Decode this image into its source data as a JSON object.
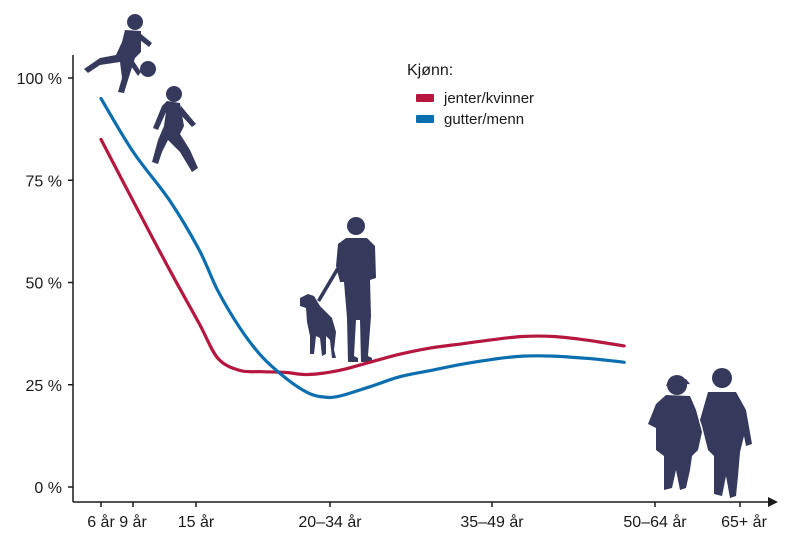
{
  "chart_data": {
    "type": "line",
    "legend_title": "Kjønn:",
    "legend_position": "top-center",
    "x": [
      "6 år",
      "9 år",
      "15 år",
      "20–34 år",
      "35–49 år",
      "50–64 år",
      "65+ år"
    ],
    "series": [
      {
        "name": "jenter/kvinner",
        "color": "#b5173f",
        "points": [
          [
            0,
            85
          ],
          [
            0.7,
            70
          ],
          [
            1.4,
            53
          ],
          [
            2,
            40
          ],
          [
            2.6,
            31.5
          ],
          [
            3.3,
            28.5
          ],
          [
            4,
            28.2
          ],
          [
            4.8,
            28
          ],
          [
            5.5,
            27.5
          ],
          [
            6.5,
            28.5
          ],
          [
            7.5,
            30.5
          ],
          [
            8.5,
            32.5
          ],
          [
            9.5,
            34
          ],
          [
            10.5,
            35
          ],
          [
            11.5,
            36
          ],
          [
            12.5,
            36.8
          ],
          [
            13.5,
            36.8
          ],
          [
            14.5,
            36
          ],
          [
            15.2,
            35.2
          ],
          [
            15.8,
            34.5
          ]
        ]
      },
      {
        "name": "gutter/menn",
        "color": "#0a6eaf",
        "points": [
          [
            0,
            95
          ],
          [
            0.7,
            82
          ],
          [
            1.4,
            70
          ],
          [
            2,
            58
          ],
          [
            2.6,
            48
          ],
          [
            3.3,
            39
          ],
          [
            4,
            32
          ],
          [
            4.8,
            26.5
          ],
          [
            5.5,
            23
          ],
          [
            6,
            22
          ],
          [
            6.5,
            22.2
          ],
          [
            7.5,
            24.5
          ],
          [
            8.5,
            27
          ],
          [
            9.5,
            28.5
          ],
          [
            10.5,
            30
          ],
          [
            11.5,
            31.2
          ],
          [
            12.5,
            32
          ],
          [
            13.5,
            32
          ],
          [
            14.5,
            31.5
          ],
          [
            15.2,
            31
          ],
          [
            15.8,
            30.5
          ]
        ]
      }
    ],
    "y_ticks": [
      "0 %",
      "25 %",
      "50 %",
      "75 %",
      "100 %"
    ],
    "ylim": [
      0,
      100
    ],
    "grid": false
  },
  "figures": {
    "icons": [
      "child-playing-ball-icon",
      "child-running-icon",
      "person-walking-dog-icon",
      "elderly-couple-icon"
    ],
    "color": "#353a5c"
  }
}
